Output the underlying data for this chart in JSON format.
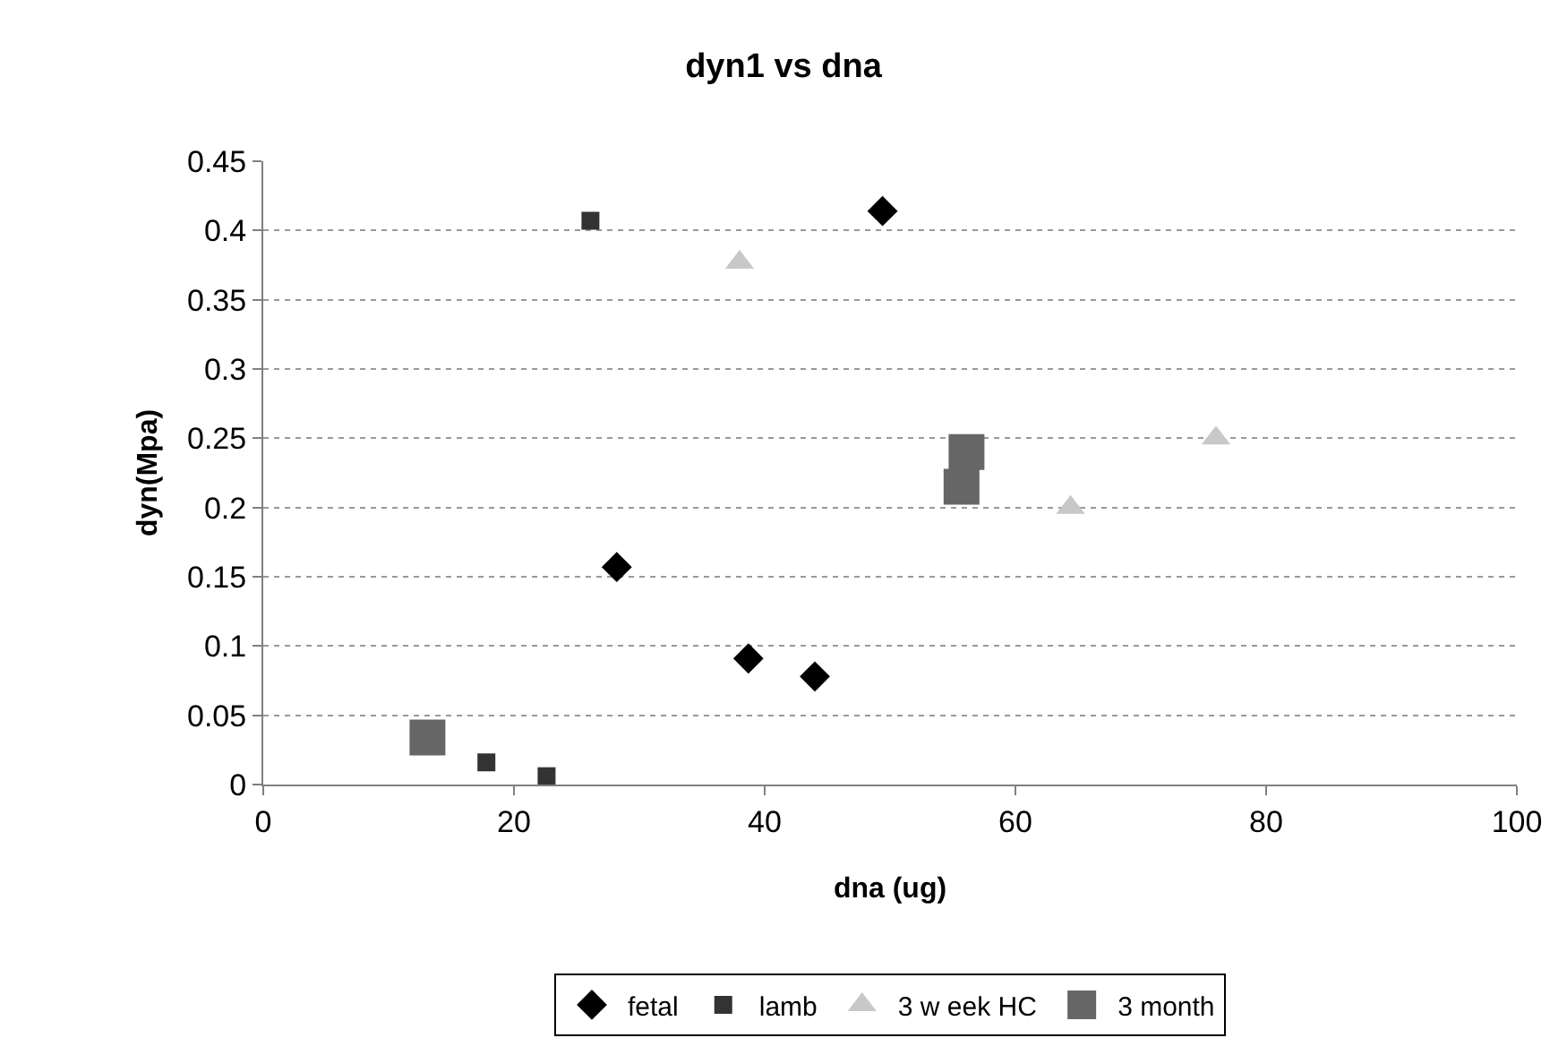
{
  "chart_data": {
    "type": "scatter",
    "title": "dyn1 vs dna",
    "xlabel": "dna (ug)",
    "ylabel": "dyn(Mpa)",
    "xlim": [
      0,
      100
    ],
    "xticks": [
      0,
      20,
      40,
      60,
      80,
      100
    ],
    "ylim": [
      0,
      0.45
    ],
    "yticks": [
      0,
      0.05,
      0.1,
      0.15,
      0.2,
      0.25,
      0.3,
      0.35,
      0.4,
      0.45
    ],
    "grid": "y",
    "legend": "bottom",
    "series": [
      {
        "name": "fetal",
        "color": "#000000",
        "marker": "diamond",
        "x": [
          49.4,
          28.2,
          38.7,
          44.0
        ],
        "values": [
          0.414,
          0.157,
          0.091,
          0.078
        ]
      },
      {
        "name": "lamb",
        "color": "#333333",
        "marker": "square",
        "x": [
          26.1,
          17.8,
          22.6
        ],
        "values": [
          0.407,
          0.016,
          0.006
        ]
      },
      {
        "name": "3 w eek HC",
        "color": "#c8c8c8",
        "marker": "triangle",
        "x": [
          38.0,
          64.4,
          76.0
        ],
        "values": [
          0.377,
          0.2,
          0.25
        ]
      },
      {
        "name": "3 month",
        "color": "#666666",
        "marker": "square",
        "x": [
          13.1,
          56.1,
          55.7
        ],
        "values": [
          0.034,
          0.24,
          0.215
        ]
      }
    ]
  }
}
